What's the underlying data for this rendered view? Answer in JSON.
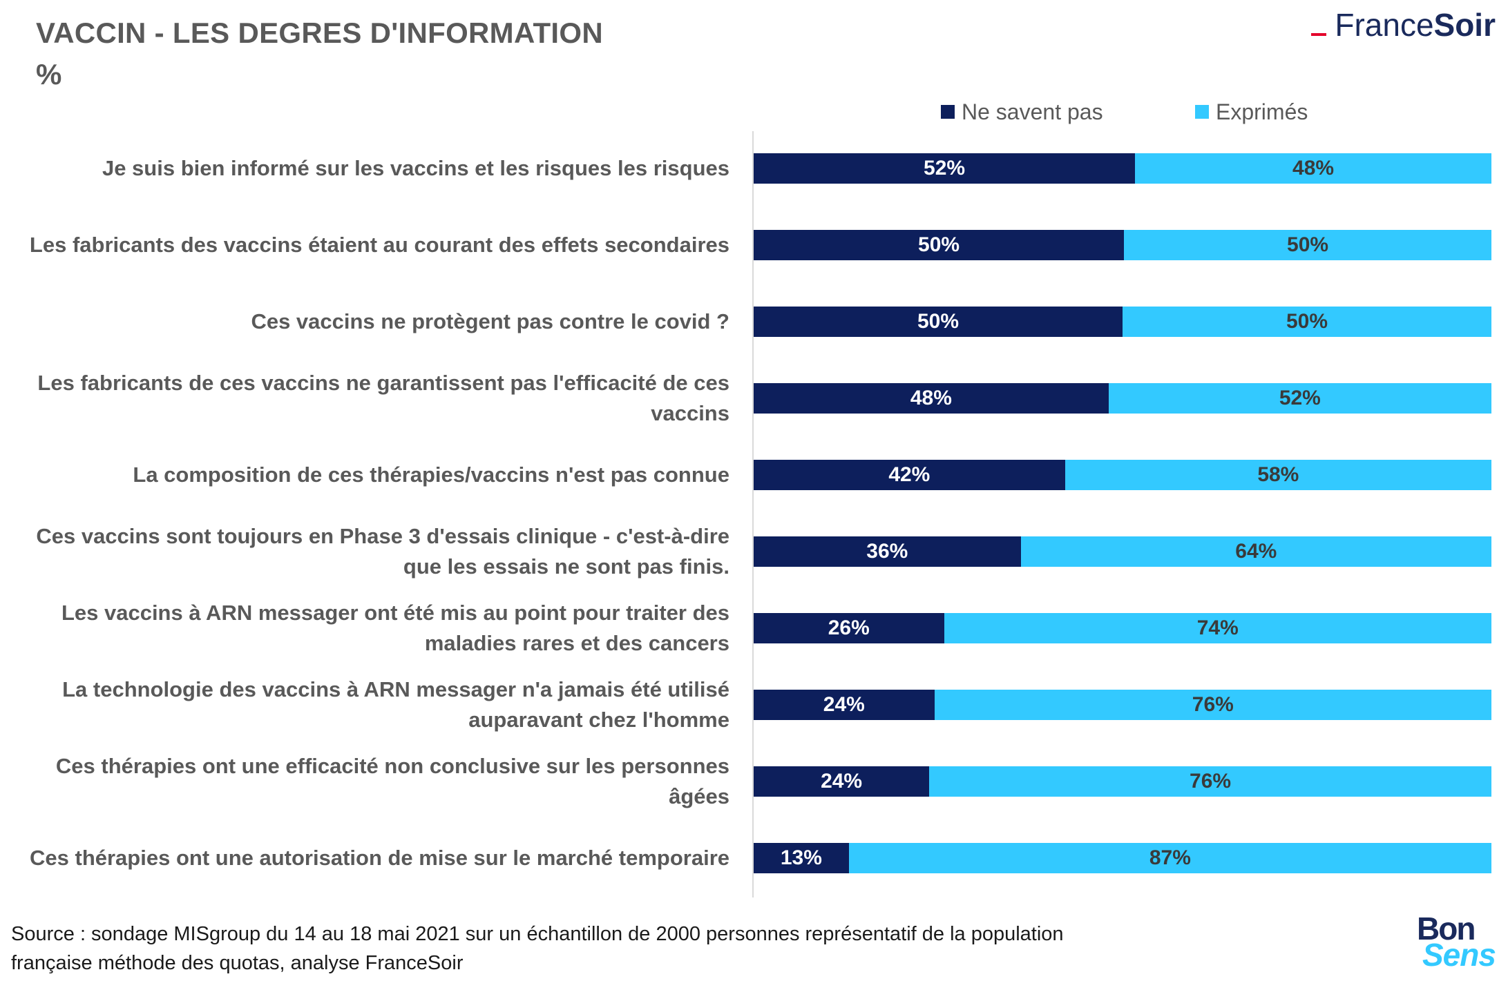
{
  "header": {
    "title": "VACCIN - LES DEGRES D'INFORMATION",
    "unit": "%"
  },
  "brand": {
    "francesoir_part1": "France",
    "francesoir_part2": "Soir",
    "bonsens_part1": "Bon",
    "bonsens_part2": "Sens"
  },
  "footer": {
    "source_line1": "Source : sondage MISgroup du 14 au 18 mai 2021 sur un échantillon de 2000 personnes représentatif de la population",
    "source_line2": "française méthode des quotas, analyse FranceSoir"
  },
  "colors": {
    "ne_savent_pas": "#0d1f5c",
    "exprimes": "#33c9ff",
    "text": "#595959",
    "brand_red": "#e4002b"
  },
  "chart_data": {
    "type": "bar",
    "orientation": "horizontal",
    "stacked": "100%",
    "legend_position": "top",
    "grid": false,
    "xlim": [
      0,
      100
    ],
    "categories": [
      "Je suis bien informé sur les vaccins et les risques les risques",
      "Les fabricants des vaccins étaient au courant des effets secondaires",
      "Ces vaccins ne protègent pas contre le covid ?",
      "Les fabricants de ces vaccins ne garantissent pas l'efficacité de ces vaccins",
      "La composition de ces thérapies/vaccins n'est pas connue",
      "Ces vaccins sont toujours en Phase 3 d'essais clinique - c'est-à-dire que les essais ne sont pas finis.",
      "Les vaccins à ARN messager ont été mis au point pour traiter des maladies rares et des cancers",
      "La technologie des vaccins à ARN messager n'a jamais été utilisé auparavant chez l'homme",
      "Ces thérapies ont une efficacité non conclusive sur les personnes âgées",
      "Ces thérapies ont une autorisation de mise sur le marché temporaire"
    ],
    "series": [
      {
        "name": "Ne savent pas",
        "values": [
          51.7,
          50.2,
          50.0,
          48.1,
          42.2,
          36.2,
          25.8,
          24.5,
          23.8,
          12.9
        ],
        "labels": [
          "52%",
          "50%",
          "50%",
          "48%",
          "42%",
          "36%",
          "26%",
          "24%",
          "24%",
          "13%"
        ]
      },
      {
        "name": "Exprimés",
        "values": [
          48.3,
          49.8,
          50.0,
          51.9,
          57.8,
          63.8,
          74.2,
          75.5,
          76.2,
          87.1
        ],
        "labels": [
          "48%",
          "50%",
          "50%",
          "52%",
          "58%",
          "64%",
          "74%",
          "76%",
          "76%",
          "87%"
        ]
      }
    ]
  }
}
